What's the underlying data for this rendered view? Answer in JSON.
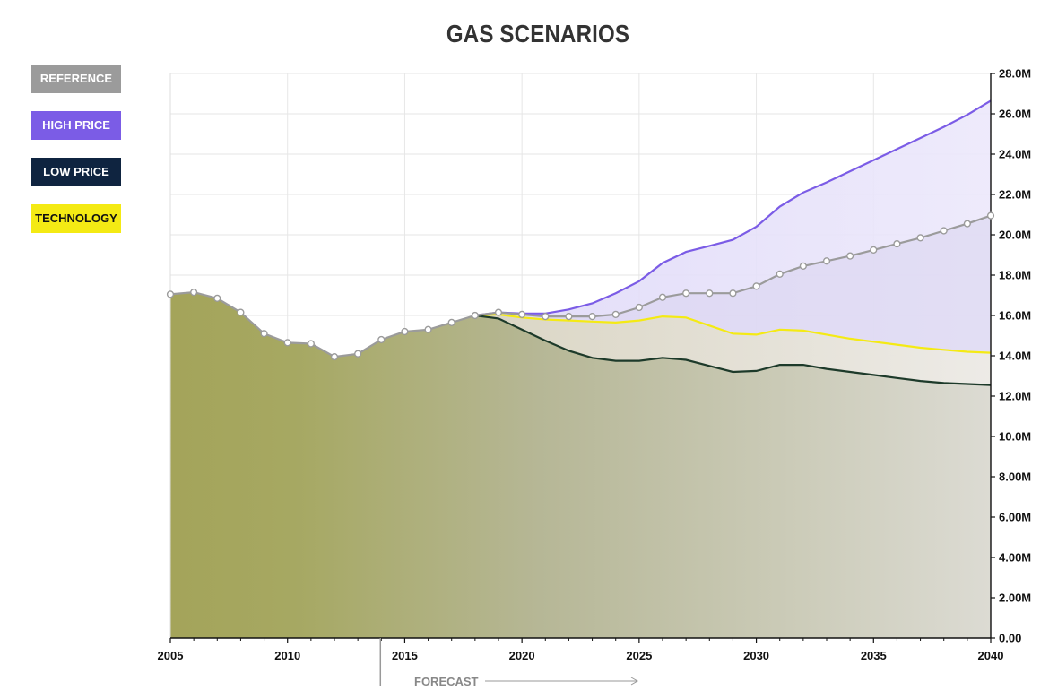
{
  "chart_data": {
    "type": "area",
    "title": "GAS SCENARIOS",
    "xlabel": "",
    "ylabel": "",
    "xlim": [
      2005,
      2040
    ],
    "ylim": [
      0,
      28000000
    ],
    "x_ticks": [
      2005,
      2010,
      2015,
      2020,
      2025,
      2030,
      2035,
      2040
    ],
    "x_tick_labels": [
      "2005",
      "2010",
      "2015",
      "2020",
      "2025",
      "2030",
      "2035",
      "2040"
    ],
    "y_ticks": [
      0,
      2000000,
      4000000,
      6000000,
      8000000,
      10000000,
      12000000,
      14000000,
      16000000,
      18000000,
      20000000,
      22000000,
      24000000,
      26000000,
      28000000
    ],
    "y_tick_labels": [
      "0.00",
      "2.00M",
      "4.00M",
      "6.00M",
      "8.00M",
      "10.0M",
      "12.0M",
      "14.0M",
      "16.0M",
      "18.0M",
      "20.0M",
      "22.0M",
      "24.0M",
      "26.0M",
      "28.0M"
    ],
    "y_axis_position": "right",
    "grid": true,
    "legend_position": "top-left",
    "forecast": {
      "label": "FORECAST",
      "start_year": 2014
    },
    "series": [
      {
        "name": "HIGH PRICE",
        "color": "#7b5ce6",
        "x": [
          2018,
          2019,
          2020,
          2021,
          2022,
          2023,
          2024,
          2025,
          2026,
          2027,
          2028,
          2029,
          2030,
          2031,
          2032,
          2033,
          2034,
          2035,
          2036,
          2037,
          2038,
          2039,
          2040
        ],
        "values": [
          16000000,
          16150000,
          16100000,
          16100000,
          16300000,
          16600000,
          17100000,
          17700000,
          18600000,
          19150000,
          19450000,
          19750000,
          20400000,
          21400000,
          22100000,
          22600000,
          23150000,
          23700000,
          24250000,
          24800000,
          25350000,
          25950000,
          26650000
        ]
      },
      {
        "name": "REFERENCE",
        "color": "#9b9b9b",
        "x": [
          2005,
          2006,
          2007,
          2008,
          2009,
          2010,
          2011,
          2012,
          2013,
          2014,
          2015,
          2016,
          2017,
          2018,
          2019,
          2020,
          2021,
          2022,
          2023,
          2024,
          2025,
          2026,
          2027,
          2028,
          2029,
          2030,
          2031,
          2032,
          2033,
          2034,
          2035,
          2036,
          2037,
          2038,
          2039,
          2040
        ],
        "values": [
          17050000,
          17150000,
          16850000,
          16150000,
          15100000,
          14650000,
          14600000,
          13950000,
          14100000,
          14800000,
          15200000,
          15300000,
          15650000,
          16000000,
          16150000,
          16050000,
          15950000,
          15950000,
          15950000,
          16050000,
          16400000,
          16900000,
          17100000,
          17100000,
          17100000,
          17450000,
          18050000,
          18450000,
          18700000,
          18950000,
          19250000,
          19550000,
          19850000,
          20200000,
          20550000,
          20950000
        ]
      },
      {
        "name": "TECHNOLOGY",
        "color": "#f4ea14",
        "x": [
          2018,
          2019,
          2020,
          2021,
          2022,
          2023,
          2024,
          2025,
          2026,
          2027,
          2028,
          2029,
          2030,
          2031,
          2032,
          2033,
          2034,
          2035,
          2036,
          2037,
          2038,
          2039,
          2040
        ],
        "values": [
          16000000,
          16050000,
          15900000,
          15800000,
          15750000,
          15700000,
          15650000,
          15750000,
          15950000,
          15900000,
          15500000,
          15100000,
          15050000,
          15300000,
          15250000,
          15050000,
          14850000,
          14700000,
          14550000,
          14400000,
          14300000,
          14200000,
          14150000
        ]
      },
      {
        "name": "LOW PRICE",
        "color": "#1d3a2a",
        "x": [
          2018,
          2019,
          2020,
          2021,
          2022,
          2023,
          2024,
          2025,
          2026,
          2027,
          2028,
          2029,
          2030,
          2031,
          2032,
          2033,
          2034,
          2035,
          2036,
          2037,
          2038,
          2039,
          2040
        ],
        "values": [
          16000000,
          15850000,
          15300000,
          14750000,
          14250000,
          13900000,
          13750000,
          13750000,
          13900000,
          13800000,
          13500000,
          13200000,
          13250000,
          13550000,
          13550000,
          13350000,
          13200000,
          13050000,
          12900000,
          12750000,
          12650000,
          12600000,
          12550000
        ]
      }
    ]
  },
  "legend": {
    "items": [
      {
        "label": "REFERENCE",
        "bg": "#9b9b9b",
        "fg": "#ffffff"
      },
      {
        "label": "HIGH PRICE",
        "bg": "#7b5ce6",
        "fg": "#ffffff"
      },
      {
        "label": "LOW PRICE",
        "bg": "#0f2440",
        "fg": "#ffffff"
      },
      {
        "label": "TECHNOLOGY",
        "bg": "#f4ea14",
        "fg": "#111111"
      }
    ]
  }
}
